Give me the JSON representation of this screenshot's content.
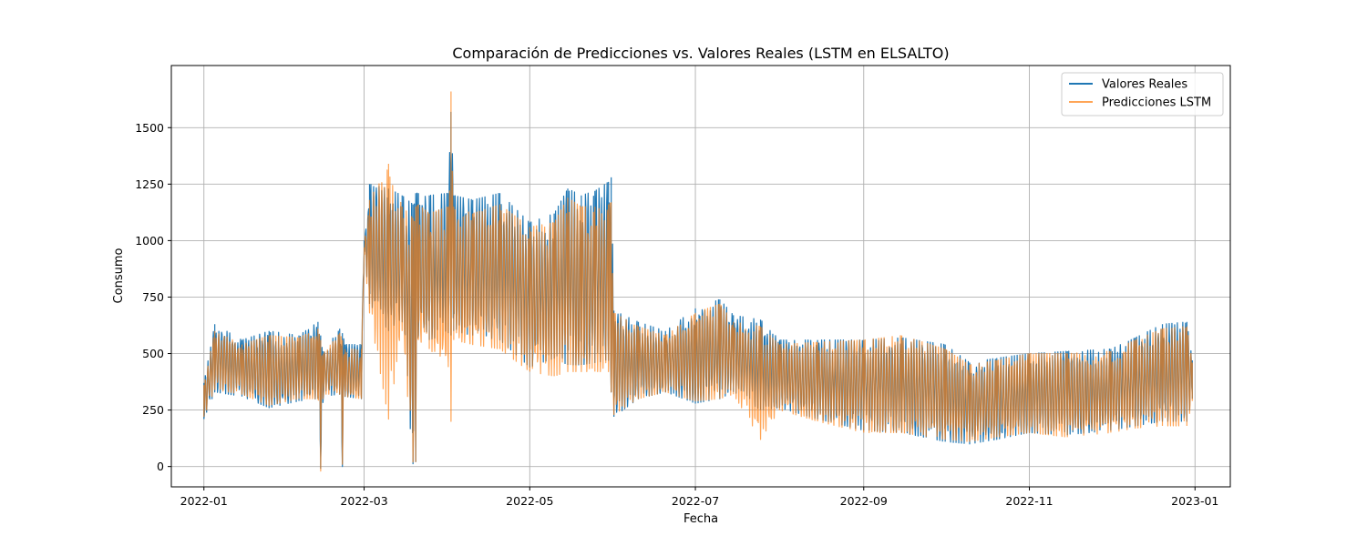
{
  "colors": {
    "real": "#1f77b4",
    "pred": "#ff7f0e",
    "grid": "#b0b0b0"
  },
  "chart_data": {
    "type": "line",
    "title": "Comparación de Predicciones vs. Valores Reales (LSTM en ELSALTO)",
    "xlabel": "Fecha",
    "ylabel": "Consumo",
    "xlim": [
      "2021-12-20",
      "2023-01-14"
    ],
    "ylim": [
      -90,
      1775
    ],
    "grid": true,
    "legend_position": "top-right",
    "x_ticks": [
      {
        "date": "2022-01-01",
        "label": "2022-01"
      },
      {
        "date": "2022-03-01",
        "label": "2022-03"
      },
      {
        "date": "2022-05-01",
        "label": "2022-05"
      },
      {
        "date": "2022-07-01",
        "label": "2022-07"
      },
      {
        "date": "2022-09-01",
        "label": "2022-09"
      },
      {
        "date": "2022-11-01",
        "label": "2022-11"
      },
      {
        "date": "2023-01-01",
        "label": "2023-01"
      }
    ],
    "y_ticks": [
      0,
      250,
      500,
      750,
      1000,
      1250,
      1500
    ],
    "series": [
      {
        "name": "Valores Reales",
        "color": "#1f77b4",
        "x": [
          "2022-01-01",
          "2022-01-05",
          "2022-01-15",
          "2022-01-25",
          "2022-02-05",
          "2022-02-12",
          "2022-02-13",
          "2022-02-14",
          "2022-02-20",
          "2022-02-21",
          "2022-02-22",
          "2022-02-28",
          "2022-03-01",
          "2022-03-03",
          "2022-03-10",
          "2022-03-15",
          "2022-03-19",
          "2022-03-20",
          "2022-03-21",
          "2022-03-25",
          "2022-04-01",
          "2022-04-02",
          "2022-04-03",
          "2022-04-10",
          "2022-04-20",
          "2022-05-01",
          "2022-05-10",
          "2022-05-15",
          "2022-05-20",
          "2022-05-25",
          "2022-05-30",
          "2022-05-31",
          "2022-06-01",
          "2022-06-10",
          "2022-06-20",
          "2022-07-01",
          "2022-07-10",
          "2022-07-15",
          "2022-07-25",
          "2022-08-01",
          "2022-08-15",
          "2022-09-01",
          "2022-09-15",
          "2022-10-01",
          "2022-10-10",
          "2022-10-20",
          "2022-11-01",
          "2022-11-15",
          "2022-12-01",
          "2022-12-10",
          "2022-12-20",
          "2022-12-29",
          "2022-12-31"
        ],
        "min": [
          210,
          330,
          310,
          260,
          290,
          300,
          -10,
          310,
          320,
          0,
          310,
          300,
          950,
          720,
          600,
          640,
          10,
          20,
          580,
          560,
          590,
          580,
          600,
          580,
          560,
          440,
          480,
          450,
          450,
          460,
          470,
          330,
          220,
          300,
          330,
          280,
          300,
          330,
          250,
          260,
          210,
          160,
          150,
          110,
          100,
          120,
          150,
          140,
          160,
          180,
          200,
          200,
          300
        ],
        "max": [
          370,
          630,
          560,
          600,
          580,
          640,
          580,
          510,
          610,
          590,
          540,
          540,
          1000,
          1250,
          1230,
          1200,
          1160,
          1210,
          1210,
          1200,
          1210,
          1570,
          1200,
          1180,
          1210,
          1080,
          1120,
          1230,
          1200,
          1220,
          1260,
          1280,
          690,
          640,
          600,
          700,
          740,
          670,
          650,
          560,
          560,
          560,
          570,
          540,
          460,
          480,
          500,
          510,
          520,
          570,
          630,
          640,
          470
        ]
      },
      {
        "name": "Predicciones LSTM",
        "color": "#ff7f0e",
        "x": [
          "2022-01-01",
          "2022-01-05",
          "2022-01-15",
          "2022-01-25",
          "2022-02-05",
          "2022-02-12",
          "2022-02-13",
          "2022-02-14",
          "2022-02-20",
          "2022-02-21",
          "2022-02-22",
          "2022-02-28",
          "2022-03-01",
          "2022-03-03",
          "2022-03-10",
          "2022-03-15",
          "2022-03-19",
          "2022-03-20",
          "2022-03-21",
          "2022-03-25",
          "2022-04-01",
          "2022-04-02",
          "2022-04-03",
          "2022-04-10",
          "2022-04-20",
          "2022-05-01",
          "2022-05-10",
          "2022-05-15",
          "2022-05-20",
          "2022-05-25",
          "2022-05-30",
          "2022-05-31",
          "2022-06-01",
          "2022-06-10",
          "2022-06-20",
          "2022-07-01",
          "2022-07-10",
          "2022-07-15",
          "2022-07-25",
          "2022-08-01",
          "2022-08-15",
          "2022-09-01",
          "2022-09-15",
          "2022-10-01",
          "2022-10-10",
          "2022-10-20",
          "2022-11-01",
          "2022-11-15",
          "2022-12-01",
          "2022-12-10",
          "2022-12-20",
          "2022-12-29",
          "2022-12-31"
        ],
        "min": [
          220,
          340,
          320,
          270,
          300,
          300,
          -20,
          320,
          320,
          10,
          310,
          300,
          940,
          680,
          210,
          600,
          20,
          20,
          560,
          520,
          440,
          200,
          560,
          540,
          520,
          420,
          400,
          420,
          420,
          420,
          420,
          330,
          230,
          300,
          330,
          290,
          300,
          320,
          120,
          250,
          200,
          150,
          150,
          120,
          110,
          130,
          150,
          130,
          150,
          170,
          180,
          180,
          290
        ],
        "max": [
          360,
          600,
          540,
          580,
          570,
          610,
          560,
          500,
          590,
          560,
          520,
          520,
          970,
          1180,
          1340,
          1150,
          1100,
          1150,
          1160,
          1120,
          1150,
          1660,
          1150,
          1120,
          1160,
          1060,
          1080,
          1190,
          1150,
          1150,
          1160,
          1170,
          680,
          620,
          580,
          680,
          720,
          640,
          620,
          540,
          550,
          560,
          580,
          520,
          450,
          470,
          500,
          500,
          510,
          560,
          610,
          620,
          460
        ]
      }
    ]
  }
}
